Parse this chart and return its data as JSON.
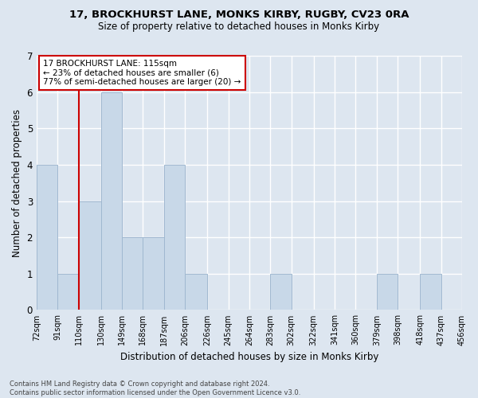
{
  "title1": "17, BROCKHURST LANE, MONKS KIRBY, RUGBY, CV23 0RA",
  "title2": "Size of property relative to detached houses in Monks Kirby",
  "xlabel": "Distribution of detached houses by size in Monks Kirby",
  "ylabel": "Number of detached properties",
  "footnote": "Contains HM Land Registry data © Crown copyright and database right 2024.\nContains public sector information licensed under the Open Government Licence v3.0.",
  "bins": [
    72,
    91,
    110,
    130,
    149,
    168,
    187,
    206,
    226,
    245,
    264,
    283,
    302,
    322,
    341,
    360,
    379,
    398,
    418,
    437,
    456
  ],
  "bin_labels": [
    "72sqm",
    "91sqm",
    "110sqm",
    "130sqm",
    "149sqm",
    "168sqm",
    "187sqm",
    "206sqm",
    "226sqm",
    "245sqm",
    "264sqm",
    "283sqm",
    "302sqm",
    "322sqm",
    "341sqm",
    "360sqm",
    "379sqm",
    "398sqm",
    "418sqm",
    "437sqm",
    "456sqm"
  ],
  "counts": [
    4,
    1,
    3,
    6,
    2,
    2,
    4,
    1,
    0,
    0,
    0,
    1,
    0,
    0,
    0,
    0,
    1,
    0,
    1,
    0
  ],
  "property_label": "17 BROCKHURST LANE: 115sqm",
  "annotation_line1": "← 23% of detached houses are smaller (6)",
  "annotation_line2": "77% of semi-detached houses are larger (20) →",
  "bar_color": "#c8d8e8",
  "bar_edge_color": "#a0b8d0",
  "vline_color": "#cc0000",
  "annotation_box_color": "#ffffff",
  "annotation_box_edge": "#cc0000",
  "ylim": [
    0,
    7
  ],
  "yticks": [
    0,
    1,
    2,
    3,
    4,
    5,
    6,
    7
  ],
  "background_color": "#dde6f0"
}
